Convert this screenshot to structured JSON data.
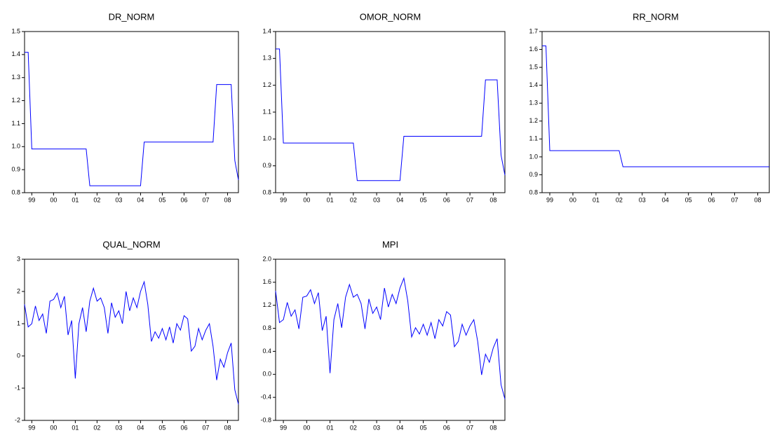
{
  "chart_data": [
    {
      "type": "line",
      "title": "DR_NORM",
      "categories": [
        null,
        null,
        "99",
        null,
        null,
        null,
        null,
        null,
        "00",
        null,
        null,
        null,
        null,
        null,
        "01",
        null,
        null,
        null,
        null,
        null,
        "02",
        null,
        null,
        null,
        null,
        null,
        "03",
        null,
        null,
        null,
        null,
        null,
        "04",
        null,
        null,
        null,
        null,
        null,
        "05",
        null,
        null,
        null,
        null,
        null,
        "06",
        null,
        null,
        null,
        null,
        null,
        "07",
        null,
        null,
        null,
        null,
        null,
        "08",
        null,
        null,
        null
      ],
      "series": [
        {
          "color": "#0000ff",
          "values": [
            1.41,
            1.41,
            0.99,
            0.99,
            0.99,
            0.99,
            0.99,
            0.99,
            0.99,
            0.99,
            0.99,
            0.99,
            0.99,
            0.99,
            0.99,
            0.99,
            0.99,
            0.99,
            0.83,
            0.83,
            0.83,
            0.83,
            0.83,
            0.83,
            0.83,
            0.83,
            0.83,
            0.83,
            0.83,
            0.83,
            0.83,
            0.83,
            0.83,
            1.02,
            1.02,
            1.02,
            1.02,
            1.02,
            1.02,
            1.02,
            1.02,
            1.02,
            1.02,
            1.02,
            1.02,
            1.02,
            1.02,
            1.02,
            1.02,
            1.02,
            1.02,
            1.02,
            1.02,
            1.27,
            1.27,
            1.27,
            1.27,
            1.27,
            0.94,
            0.855
          ]
        }
      ],
      "ylim": [
        0.8,
        1.5
      ],
      "yticks": [
        0.8,
        0.9,
        {
          "value": 1,
          "label": "1.0"
        },
        1.1,
        1.2,
        1.3,
        1.4,
        1.5
      ]
    },
    {
      "type": "line",
      "title": "OMOR_NORM",
      "categories": [
        null,
        null,
        "99",
        null,
        null,
        null,
        null,
        null,
        "00",
        null,
        null,
        null,
        null,
        null,
        "01",
        null,
        null,
        null,
        null,
        null,
        "02",
        null,
        null,
        null,
        null,
        null,
        "03",
        null,
        null,
        null,
        null,
        null,
        "04",
        null,
        null,
        null,
        null,
        null,
        "05",
        null,
        null,
        null,
        null,
        null,
        "06",
        null,
        null,
        null,
        null,
        null,
        "07",
        null,
        null,
        null,
        null,
        null,
        "08",
        null,
        null,
        null
      ],
      "series": [
        {
          "color": "#0000ff",
          "values": [
            1.335,
            1.335,
            0.985,
            0.985,
            0.985,
            0.985,
            0.985,
            0.985,
            0.985,
            0.985,
            0.985,
            0.985,
            0.985,
            0.985,
            0.985,
            0.985,
            0.985,
            0.985,
            0.985,
            0.985,
            0.985,
            0.845,
            0.845,
            0.845,
            0.845,
            0.845,
            0.845,
            0.845,
            0.845,
            0.845,
            0.845,
            0.845,
            0.845,
            1.01,
            1.01,
            1.01,
            1.01,
            1.01,
            1.01,
            1.01,
            1.01,
            1.01,
            1.01,
            1.01,
            1.01,
            1.01,
            1.01,
            1.01,
            1.01,
            1.01,
            1.01,
            1.01,
            1.01,
            1.01,
            1.22,
            1.22,
            1.22,
            1.22,
            0.94,
            0.865
          ]
        }
      ],
      "ylim": [
        0.8,
        1.4
      ],
      "yticks": [
        0.8,
        0.9,
        {
          "value": 1,
          "label": "1.0"
        },
        1.1,
        1.2,
        1.3,
        1.4
      ]
    },
    {
      "type": "line",
      "title": "RR_NORM",
      "categories": [
        null,
        null,
        "99",
        null,
        null,
        null,
        null,
        null,
        "00",
        null,
        null,
        null,
        null,
        null,
        "01",
        null,
        null,
        null,
        null,
        null,
        "02",
        null,
        null,
        null,
        null,
        null,
        "03",
        null,
        null,
        null,
        null,
        null,
        "04",
        null,
        null,
        null,
        null,
        null,
        "05",
        null,
        null,
        null,
        null,
        null,
        "06",
        null,
        null,
        null,
        null,
        null,
        "07",
        null,
        null,
        null,
        null,
        null,
        "08",
        null,
        null,
        null
      ],
      "series": [
        {
          "color": "#0000ff",
          "values": [
            1.62,
            1.62,
            1.035,
            1.035,
            1.035,
            1.035,
            1.035,
            1.035,
            1.035,
            1.035,
            1.035,
            1.035,
            1.035,
            1.035,
            1.035,
            1.035,
            1.035,
            1.035,
            1.035,
            1.035,
            1.035,
            0.945,
            0.945,
            0.945,
            0.945,
            0.945,
            0.945,
            0.945,
            0.945,
            0.945,
            0.945,
            0.945,
            0.945,
            0.945,
            0.945,
            0.945,
            0.945,
            0.945,
            0.945,
            0.945,
            0.945,
            0.945,
            0.945,
            0.945,
            0.945,
            0.945,
            0.945,
            0.945,
            0.945,
            0.945,
            0.945,
            0.945,
            0.945,
            0.945,
            0.945,
            0.945,
            0.945,
            0.945,
            0.945,
            0.945
          ]
        }
      ],
      "ylim": [
        0.8,
        1.7
      ],
      "yticks": [
        0.8,
        0.9,
        {
          "value": 1,
          "label": "1.0"
        },
        1.1,
        1.2,
        1.3,
        1.4,
        1.5,
        1.6,
        1.7
      ]
    },
    {
      "type": "line",
      "title": "QUAL_NORM",
      "categories": [
        null,
        null,
        "99",
        null,
        null,
        null,
        null,
        null,
        "00",
        null,
        null,
        null,
        null,
        null,
        "01",
        null,
        null,
        null,
        null,
        null,
        "02",
        null,
        null,
        null,
        null,
        null,
        "03",
        null,
        null,
        null,
        null,
        null,
        "04",
        null,
        null,
        null,
        null,
        null,
        "05",
        null,
        null,
        null,
        null,
        null,
        "06",
        null,
        null,
        null,
        null,
        null,
        "07",
        null,
        null,
        null,
        null,
        null,
        "08",
        null,
        null,
        null
      ],
      "series": [
        {
          "color": "#0000ff",
          "values": [
            1.6,
            0.9,
            1.0,
            1.55,
            1.1,
            1.3,
            0.7,
            1.7,
            1.75,
            1.95,
            1.5,
            1.85,
            0.65,
            1.1,
            -0.7,
            1.0,
            1.5,
            0.75,
            1.7,
            2.1,
            1.7,
            1.8,
            1.5,
            0.7,
            1.65,
            1.2,
            1.4,
            1.0,
            2.0,
            1.4,
            1.8,
            1.5,
            2.0,
            2.3,
            1.6,
            0.45,
            0.75,
            0.55,
            0.85,
            0.5,
            0.9,
            0.4,
            1.0,
            0.8,
            1.25,
            1.15,
            0.15,
            0.3,
            0.85,
            0.5,
            0.8,
            1.0,
            0.3,
            -0.75,
            -0.1,
            -0.35,
            0.1,
            0.4,
            -1.05,
            -1.5
          ]
        }
      ],
      "ylim": [
        -2,
        3
      ],
      "yticks": [
        -2,
        -1,
        0,
        1,
        2,
        3
      ]
    },
    {
      "type": "line",
      "title": "MPI",
      "categories": [
        null,
        null,
        "99",
        null,
        null,
        null,
        null,
        null,
        "00",
        null,
        null,
        null,
        null,
        null,
        "01",
        null,
        null,
        null,
        null,
        null,
        "02",
        null,
        null,
        null,
        null,
        null,
        "03",
        null,
        null,
        null,
        null,
        null,
        "04",
        null,
        null,
        null,
        null,
        null,
        "05",
        null,
        null,
        null,
        null,
        null,
        "06",
        null,
        null,
        null,
        null,
        null,
        "07",
        null,
        null,
        null,
        null,
        null,
        "08",
        null,
        null,
        null
      ],
      "series": [
        {
          "color": "#0000ff",
          "values": [
            1.45,
            0.9,
            0.95,
            1.25,
            1.01,
            1.12,
            0.79,
            1.34,
            1.36,
            1.47,
            1.23,
            1.42,
            0.76,
            1.01,
            0.02,
            0.95,
            1.23,
            0.81,
            1.34,
            1.56,
            1.34,
            1.39,
            1.23,
            0.79,
            1.31,
            1.06,
            1.17,
            0.95,
            1.5,
            1.17,
            1.39,
            1.23,
            1.5,
            1.67,
            1.28,
            0.65,
            0.81,
            0.7,
            0.87,
            0.68,
            0.9,
            0.62,
            0.95,
            0.84,
            1.09,
            1.03,
            0.48,
            0.57,
            0.87,
            0.68,
            0.84,
            0.95,
            0.57,
            -0.01,
            0.35,
            0.21,
            0.46,
            0.62,
            -0.18,
            -0.43
          ]
        }
      ],
      "ylim": [
        -0.8,
        2.0
      ],
      "yticks": [
        -0.8,
        -0.4,
        {
          "value": 0,
          "label": "0.0"
        },
        0.4,
        0.8,
        1.2,
        1.6,
        {
          "value": 2,
          "label": "2.0"
        }
      ]
    }
  ]
}
